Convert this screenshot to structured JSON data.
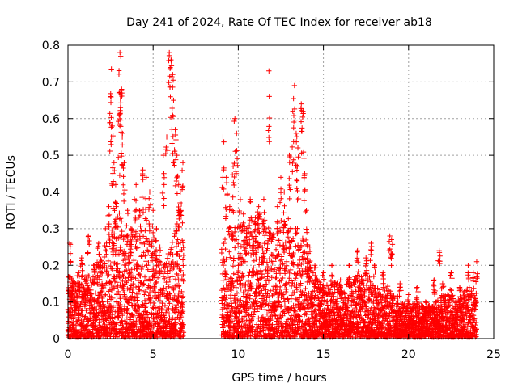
{
  "chart_data": {
    "type": "scatter",
    "title": "Day 241 of 2024, Rate Of TEC Index for receiver ab18",
    "xlabel": "GPS time / hours",
    "ylabel": "ROTI / TECUs",
    "xlim": [
      0,
      25
    ],
    "ylim": [
      0,
      0.8
    ],
    "xticks": [
      "0",
      "5",
      "10",
      "15",
      "20",
      "25"
    ],
    "yticks": [
      "0",
      "0.1",
      "0.2",
      "0.3",
      "0.4",
      "0.5",
      "0.6",
      "0.7",
      "0.8"
    ],
    "grid": true,
    "marker": "plus",
    "color": "#ff0000",
    "series": [
      {
        "points": [
          [
            0.0,
            0.08
          ],
          [
            0.1,
            0.26
          ],
          [
            0.2,
            0.14
          ],
          [
            0.4,
            0.1
          ],
          [
            0.6,
            0.18
          ],
          [
            0.8,
            0.22
          ],
          [
            1.0,
            0.12
          ],
          [
            1.2,
            0.28
          ],
          [
            1.5,
            0.2
          ],
          [
            1.8,
            0.26
          ],
          [
            2.0,
            0.15
          ],
          [
            2.2,
            0.3
          ],
          [
            2.4,
            0.36
          ],
          [
            2.5,
            0.66
          ],
          [
            2.55,
            0.735
          ],
          [
            2.6,
            0.58
          ],
          [
            2.7,
            0.48
          ],
          [
            2.8,
            0.42
          ],
          [
            3.0,
            0.61
          ],
          [
            3.05,
            0.78
          ],
          [
            3.1,
            0.77
          ],
          [
            3.15,
            0.68
          ],
          [
            3.2,
            0.56
          ],
          [
            3.3,
            0.48
          ],
          [
            3.5,
            0.35
          ],
          [
            3.7,
            0.3
          ],
          [
            3.9,
            0.38
          ],
          [
            4.0,
            0.42
          ],
          [
            4.2,
            0.35
          ],
          [
            4.4,
            0.46
          ],
          [
            4.6,
            0.44
          ],
          [
            4.8,
            0.4
          ],
          [
            5.0,
            0.35
          ],
          [
            5.2,
            0.3
          ],
          [
            5.4,
            0.25
          ],
          [
            5.6,
            0.5
          ],
          [
            5.8,
            0.55
          ],
          [
            5.95,
            0.78
          ],
          [
            6.05,
            0.76
          ],
          [
            6.15,
            0.72
          ],
          [
            6.2,
            0.65
          ],
          [
            6.3,
            0.57
          ],
          [
            6.4,
            0.5
          ],
          [
            6.5,
            0.42
          ],
          [
            6.6,
            0.4
          ],
          [
            6.75,
            0.48
          ],
          [
            9.1,
            0.55
          ],
          [
            9.3,
            0.44
          ],
          [
            9.5,
            0.36
          ],
          [
            9.7,
            0.47
          ],
          [
            9.8,
            0.6
          ],
          [
            9.9,
            0.56
          ],
          [
            10.1,
            0.4
          ],
          [
            10.3,
            0.34
          ],
          [
            10.5,
            0.3
          ],
          [
            10.7,
            0.38
          ],
          [
            11.0,
            0.33
          ],
          [
            11.2,
            0.36
          ],
          [
            11.5,
            0.38
          ],
          [
            11.8,
            0.73
          ],
          [
            12.0,
            0.28
          ],
          [
            12.3,
            0.36
          ],
          [
            12.5,
            0.44
          ],
          [
            12.7,
            0.4
          ],
          [
            13.0,
            0.5
          ],
          [
            13.2,
            0.62
          ],
          [
            13.3,
            0.69
          ],
          [
            13.4,
            0.56
          ],
          [
            13.5,
            0.52
          ],
          [
            13.7,
            0.64
          ],
          [
            13.8,
            0.62
          ],
          [
            13.9,
            0.45
          ],
          [
            14.0,
            0.35
          ],
          [
            14.2,
            0.25
          ],
          [
            14.5,
            0.2
          ],
          [
            15.0,
            0.18
          ],
          [
            15.5,
            0.2
          ],
          [
            16.0,
            0.16
          ],
          [
            16.5,
            0.2
          ],
          [
            17.0,
            0.24
          ],
          [
            17.5,
            0.22
          ],
          [
            17.8,
            0.26
          ],
          [
            18.0,
            0.2
          ],
          [
            18.5,
            0.18
          ],
          [
            18.9,
            0.28
          ],
          [
            19.0,
            0.27
          ],
          [
            19.5,
            0.15
          ],
          [
            20.0,
            0.12
          ],
          [
            20.5,
            0.14
          ],
          [
            21.0,
            0.1
          ],
          [
            21.5,
            0.16
          ],
          [
            21.8,
            0.24
          ],
          [
            22.0,
            0.15
          ],
          [
            22.5,
            0.18
          ],
          [
            23.0,
            0.14
          ],
          [
            23.5,
            0.2
          ],
          [
            23.8,
            0.18
          ],
          [
            24.0,
            0.21
          ]
        ],
        "envelope": [
          [
            0.0,
            0.17
          ],
          [
            0.5,
            0.15
          ],
          [
            1.0,
            0.16
          ],
          [
            1.5,
            0.2
          ],
          [
            2.0,
            0.22
          ],
          [
            2.5,
            0.3
          ],
          [
            3.0,
            0.34
          ],
          [
            3.5,
            0.28
          ],
          [
            4.0,
            0.3
          ],
          [
            4.5,
            0.3
          ],
          [
            5.0,
            0.25
          ],
          [
            5.5,
            0.18
          ],
          [
            6.0,
            0.25
          ],
          [
            6.5,
            0.36
          ],
          [
            6.8,
            0.3
          ],
          [
            9.0,
            0.25
          ],
          [
            9.5,
            0.3
          ],
          [
            10.0,
            0.32
          ],
          [
            10.5,
            0.3
          ],
          [
            11.0,
            0.35
          ],
          [
            11.5,
            0.32
          ],
          [
            12.0,
            0.28
          ],
          [
            12.5,
            0.3
          ],
          [
            13.0,
            0.33
          ],
          [
            13.5,
            0.3
          ],
          [
            14.0,
            0.25
          ],
          [
            14.5,
            0.17
          ],
          [
            15.0,
            0.14
          ],
          [
            15.5,
            0.16
          ],
          [
            16.0,
            0.14
          ],
          [
            16.5,
            0.16
          ],
          [
            17.0,
            0.17
          ],
          [
            17.5,
            0.18
          ],
          [
            18.0,
            0.14
          ],
          [
            18.5,
            0.14
          ],
          [
            19.0,
            0.14
          ],
          [
            19.5,
            0.1
          ],
          [
            20.0,
            0.08
          ],
          [
            20.5,
            0.1
          ],
          [
            21.0,
            0.08
          ],
          [
            21.5,
            0.1
          ],
          [
            22.0,
            0.11
          ],
          [
            22.5,
            0.12
          ],
          [
            23.0,
            0.11
          ],
          [
            23.5,
            0.14
          ],
          [
            24.0,
            0.12
          ]
        ],
        "gaps": [
          [
            6.85,
            9.0
          ]
        ]
      }
    ]
  }
}
